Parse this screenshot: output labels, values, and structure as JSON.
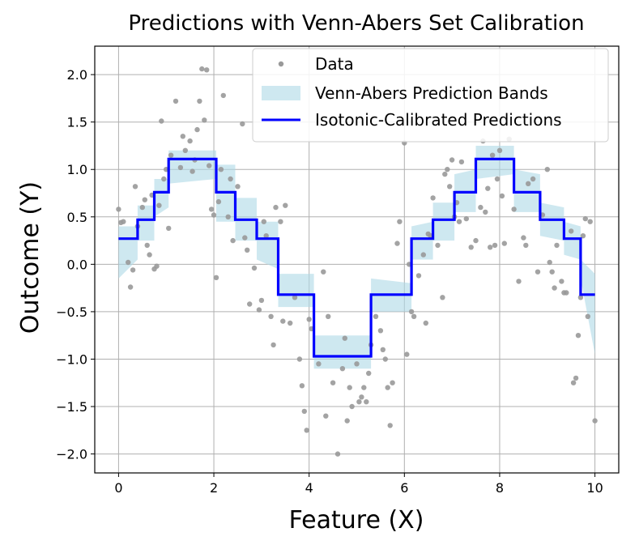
{
  "chart_data": {
    "type": "scatter",
    "title": "Predictions with Venn-Abers Set Calibration",
    "xlabel": "Feature (X)",
    "ylabel": "Outcome (Y)",
    "xlim": [
      -0.5,
      10.5
    ],
    "ylim": [
      -2.2,
      2.3
    ],
    "grid": true,
    "legend_placement": "top-right",
    "x_ticks": [
      0,
      2,
      4,
      6,
      8,
      10
    ],
    "x_tick_labels": [
      "0",
      "2",
      "4",
      "6",
      "8",
      "10"
    ],
    "y_ticks": [
      2.0,
      1.5,
      1.0,
      0.5,
      0.0,
      -0.5,
      -1.0,
      -1.5,
      -2.0
    ],
    "y_tick_labels": [
      "2.0",
      "1.5",
      "1.0",
      "0.5",
      "0.0",
      "−0.5",
      "−1.0",
      "−1.5",
      "−2.0"
    ],
    "colors": {
      "data": "#999999",
      "band": "#add8e6",
      "line": "#0000ff"
    },
    "legend": [
      "Data",
      "Venn-Abers Prediction Bands",
      "Isotonic-Calibrated Predictions"
    ],
    "series": [
      {
        "name": "Data",
        "kind": "scatter",
        "points": [
          [
            0.0,
            0.58
          ],
          [
            0.05,
            0.44
          ],
          [
            0.1,
            0.45
          ],
          [
            0.2,
            0.02
          ],
          [
            0.25,
            -0.24
          ],
          [
            0.3,
            -0.06
          ],
          [
            0.35,
            0.82
          ],
          [
            0.4,
            0.4
          ],
          [
            0.5,
            0.6
          ],
          [
            0.55,
            0.68
          ],
          [
            0.6,
            0.2
          ],
          [
            0.65,
            0.1
          ],
          [
            0.7,
            0.73
          ],
          [
            0.75,
            -0.05
          ],
          [
            0.8,
            -0.02
          ],
          [
            0.85,
            0.62
          ],
          [
            0.9,
            1.51
          ],
          [
            0.95,
            0.9
          ],
          [
            1.0,
            1.0
          ],
          [
            1.05,
            0.38
          ],
          [
            1.1,
            1.15
          ],
          [
            1.2,
            1.72
          ],
          [
            1.3,
            1.02
          ],
          [
            1.35,
            1.35
          ],
          [
            1.4,
            1.2
          ],
          [
            1.5,
            1.3
          ],
          [
            1.55,
            0.98
          ],
          [
            1.6,
            1.1
          ],
          [
            1.65,
            1.42
          ],
          [
            1.7,
            1.72
          ],
          [
            1.75,
            2.06
          ],
          [
            1.8,
            1.52
          ],
          [
            1.85,
            2.05
          ],
          [
            1.9,
            1.04
          ],
          [
            1.95,
            0.58
          ],
          [
            2.0,
            0.52
          ],
          [
            2.05,
            -0.14
          ],
          [
            2.1,
            0.66
          ],
          [
            2.15,
            1.0
          ],
          [
            2.2,
            1.78
          ],
          [
            2.3,
            0.5
          ],
          [
            2.35,
            0.9
          ],
          [
            2.4,
            0.25
          ],
          [
            2.5,
            0.82
          ],
          [
            2.6,
            1.48
          ],
          [
            2.65,
            0.28
          ],
          [
            2.7,
            0.15
          ],
          [
            2.75,
            -0.42
          ],
          [
            2.85,
            -0.04
          ],
          [
            2.95,
            -0.48
          ],
          [
            3.0,
            -0.38
          ],
          [
            3.05,
            0.45
          ],
          [
            3.1,
            0.3
          ],
          [
            3.2,
            -0.55
          ],
          [
            3.25,
            -0.85
          ],
          [
            3.3,
            0.6
          ],
          [
            3.4,
            0.45
          ],
          [
            3.45,
            -0.6
          ],
          [
            3.5,
            0.62
          ],
          [
            3.6,
            -0.62
          ],
          [
            3.7,
            -0.35
          ],
          [
            3.8,
            -1.0
          ],
          [
            3.85,
            -1.28
          ],
          [
            3.9,
            -1.55
          ],
          [
            3.95,
            -1.75
          ],
          [
            4.0,
            -0.58
          ],
          [
            4.05,
            -0.68
          ],
          [
            4.2,
            -1.05
          ],
          [
            4.3,
            -0.08
          ],
          [
            4.35,
            -1.6
          ],
          [
            4.4,
            -0.55
          ],
          [
            4.5,
            -1.25
          ],
          [
            4.6,
            -2.0
          ],
          [
            4.7,
            -1.1
          ],
          [
            4.75,
            -0.78
          ],
          [
            4.8,
            -1.65
          ],
          [
            4.85,
            -1.3
          ],
          [
            4.9,
            -1.5
          ],
          [
            5.0,
            -1.05
          ],
          [
            5.05,
            -1.45
          ],
          [
            5.1,
            -1.4
          ],
          [
            5.15,
            -1.3
          ],
          [
            5.2,
            -1.45
          ],
          [
            5.25,
            -1.15
          ],
          [
            5.3,
            -0.85
          ],
          [
            5.4,
            -0.55
          ],
          [
            5.5,
            -0.7
          ],
          [
            5.55,
            -0.9
          ],
          [
            5.6,
            -1.0
          ],
          [
            5.65,
            -1.3
          ],
          [
            5.7,
            -1.7
          ],
          [
            5.75,
            -1.25
          ],
          [
            5.85,
            0.22
          ],
          [
            5.9,
            0.45
          ],
          [
            6.0,
            1.28
          ],
          [
            6.05,
            -0.95
          ],
          [
            6.1,
            0.0
          ],
          [
            6.15,
            -0.5
          ],
          [
            6.2,
            -0.55
          ],
          [
            6.3,
            -0.12
          ],
          [
            6.4,
            0.1
          ],
          [
            6.45,
            -0.62
          ],
          [
            6.5,
            0.32
          ],
          [
            6.55,
            0.3
          ],
          [
            6.6,
            0.7
          ],
          [
            6.7,
            0.2
          ],
          [
            6.8,
            -0.35
          ],
          [
            6.85,
            0.95
          ],
          [
            6.9,
            1.0
          ],
          [
            6.95,
            0.82
          ],
          [
            7.0,
            1.1
          ],
          [
            7.05,
            0.5
          ],
          [
            7.1,
            0.65
          ],
          [
            7.15,
            0.45
          ],
          [
            7.2,
            1.08
          ],
          [
            7.3,
            0.48
          ],
          [
            7.4,
            0.18
          ],
          [
            7.5,
            0.25
          ],
          [
            7.6,
            0.6
          ],
          [
            7.65,
            1.3
          ],
          [
            7.7,
            0.55
          ],
          [
            7.75,
            0.8
          ],
          [
            7.8,
            0.18
          ],
          [
            7.85,
            1.15
          ],
          [
            7.9,
            0.2
          ],
          [
            7.95,
            0.9
          ],
          [
            8.0,
            1.2
          ],
          [
            8.05,
            0.72
          ],
          [
            8.1,
            0.22
          ],
          [
            8.2,
            1.32
          ],
          [
            8.3,
            0.58
          ],
          [
            8.4,
            -0.18
          ],
          [
            8.5,
            0.28
          ],
          [
            8.55,
            0.2
          ],
          [
            8.6,
            0.85
          ],
          [
            8.7,
            0.9
          ],
          [
            8.8,
            -0.08
          ],
          [
            8.9,
            0.52
          ],
          [
            9.0,
            1.0
          ],
          [
            9.05,
            0.02
          ],
          [
            9.1,
            -0.08
          ],
          [
            9.15,
            -0.25
          ],
          [
            9.2,
            0.2
          ],
          [
            9.3,
            -0.18
          ],
          [
            9.35,
            -0.3
          ],
          [
            9.4,
            -0.3
          ],
          [
            9.5,
            0.35
          ],
          [
            9.55,
            -1.25
          ],
          [
            9.6,
            -1.2
          ],
          [
            9.65,
            -0.75
          ],
          [
            9.7,
            -0.35
          ],
          [
            9.75,
            0.3
          ],
          [
            9.8,
            0.48
          ],
          [
            9.85,
            -0.55
          ],
          [
            9.9,
            0.45
          ],
          [
            10.0,
            -1.65
          ]
        ]
      },
      {
        "name": "Venn-Abers Prediction Bands",
        "kind": "band",
        "x": [
          0.0,
          0.4,
          0.4,
          0.75,
          0.75,
          1.05,
          1.05,
          2.05,
          2.05,
          2.45,
          2.45,
          2.9,
          2.9,
          3.35,
          3.35,
          4.1,
          4.1,
          5.3,
          5.3,
          6.15,
          6.15,
          6.6,
          6.6,
          7.05,
          7.05,
          7.5,
          7.5,
          8.3,
          8.3,
          8.85,
          8.85,
          9.35,
          9.35,
          9.7,
          9.7,
          10.0
        ],
        "lower": [
          -0.15,
          0.05,
          0.25,
          0.25,
          0.5,
          0.6,
          0.85,
          0.9,
          0.45,
          0.45,
          0.25,
          0.25,
          0.05,
          -0.05,
          -0.45,
          -0.45,
          -1.1,
          -1.1,
          -0.5,
          -0.5,
          0.05,
          0.05,
          0.25,
          0.25,
          0.55,
          0.55,
          0.9,
          0.95,
          0.55,
          0.55,
          0.3,
          0.25,
          0.1,
          0.05,
          -0.15,
          -0.95
        ],
        "upper": [
          0.4,
          0.4,
          0.62,
          0.62,
          0.9,
          0.9,
          1.2,
          1.2,
          1.05,
          1.05,
          0.7,
          0.7,
          0.45,
          0.45,
          -0.1,
          -0.1,
          -0.75,
          -0.75,
          -0.15,
          -0.2,
          0.4,
          0.45,
          0.65,
          0.65,
          0.95,
          1.0,
          1.25,
          1.25,
          1.0,
          0.95,
          0.65,
          0.6,
          0.45,
          0.4,
          0.05,
          -0.1
        ]
      },
      {
        "name": "Isotonic-Calibrated Predictions",
        "kind": "step",
        "x": [
          0.0,
          0.4,
          0.4,
          0.75,
          0.75,
          1.05,
          1.05,
          2.05,
          2.05,
          2.45,
          2.45,
          2.9,
          2.9,
          3.35,
          3.35,
          4.1,
          4.1,
          5.3,
          5.3,
          6.15,
          6.15,
          6.6,
          6.6,
          7.05,
          7.05,
          7.5,
          7.5,
          8.3,
          8.3,
          8.85,
          8.85,
          9.35,
          9.35,
          9.7,
          9.7,
          10.0
        ],
        "y": [
          0.27,
          0.27,
          0.47,
          0.47,
          0.76,
          0.76,
          1.11,
          1.11,
          0.76,
          0.76,
          0.47,
          0.47,
          0.27,
          0.27,
          -0.32,
          -0.32,
          -0.97,
          -0.97,
          -0.32,
          -0.32,
          0.27,
          0.27,
          0.47,
          0.47,
          0.76,
          0.76,
          1.11,
          1.11,
          0.76,
          0.76,
          0.47,
          0.47,
          0.27,
          0.27,
          -0.32,
          -0.32
        ]
      }
    ]
  }
}
